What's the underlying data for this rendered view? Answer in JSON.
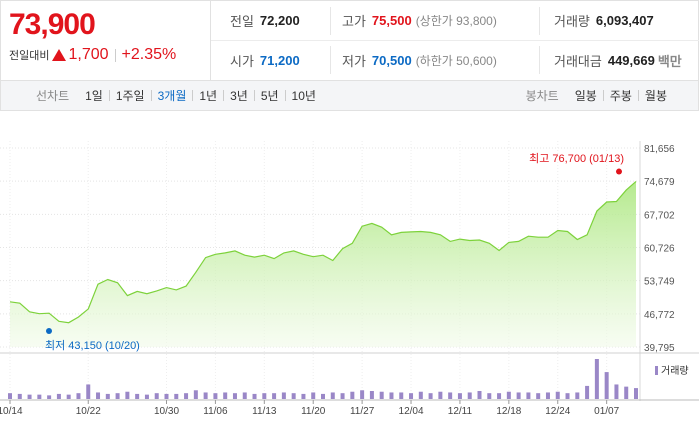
{
  "quote": {
    "price": "73,900",
    "change_label": "전일대비",
    "change_value": "1,700",
    "change_pct": "+2.35%"
  },
  "info": {
    "prev_close_label": "전일",
    "prev_close": "72,200",
    "high_label": "고가",
    "high": "75,500",
    "upper_limit": "(상한가 93,800)",
    "volume_label": "거래량",
    "volume": "6,093,407",
    "open_label": "시가",
    "open": "71,200",
    "low_label": "저가",
    "low": "70,500",
    "lower_limit": "(하한가 50,600)",
    "amount_label": "거래대금",
    "amount": "449,669",
    "amount_unit": "백만"
  },
  "toolbar": {
    "line_chart_label": "선차트",
    "periods": [
      "1일",
      "1주일",
      "3개월",
      "1년",
      "3년",
      "5년",
      "10년"
    ],
    "active_period": "3개월",
    "candle_label": "봉차트",
    "candles": [
      "일봉",
      "주봉",
      "월봉"
    ]
  },
  "colors": {
    "up": "#e1141c",
    "down": "#0c6ac4",
    "line": "#7dd23b",
    "volume": "#9a87c7"
  },
  "chart_data": {
    "type": "area",
    "y_ticks": [
      "81,656",
      "74,679",
      "67,702",
      "60,726",
      "53,749",
      "46,772",
      "39,795"
    ],
    "ylim": [
      39795,
      81656
    ],
    "x_ticks": [
      "10/14",
      "10/22",
      "10/30",
      "11/06",
      "11/13",
      "11/20",
      "11/27",
      "12/04",
      "12/11",
      "12/18",
      "12/24",
      "01/07"
    ],
    "max_annotation": "최고 76,700 (01/13)",
    "min_annotation": "최저 43,150 (10/20)",
    "volume_legend": "거래량",
    "series": [
      {
        "values": [
          49300,
          49000,
          47200,
          46800,
          46900,
          45200,
          44900,
          46100,
          47800,
          53000,
          54000,
          53300,
          50600,
          51500,
          51000,
          51600,
          52300,
          51800,
          52600,
          55500,
          58600,
          59300,
          59600,
          60000,
          59100,
          58700,
          59100,
          58400,
          59600,
          60000,
          59300,
          58800,
          59100,
          58000,
          60500,
          61600,
          65200,
          65800,
          65000,
          63400,
          63900,
          64000,
          64100,
          63900,
          63400,
          62000,
          62500,
          62200,
          62300,
          61600,
          60100,
          61800,
          62000,
          63100,
          62900,
          62900,
          64300,
          64100,
          62400,
          63400,
          68400,
          70300,
          70400,
          72800,
          74600
        ]
      },
      {
        "name": "거래량",
        "values": [
          8,
          7,
          6,
          6,
          5,
          7,
          6,
          8,
          20,
          9,
          7,
          8,
          10,
          7,
          6,
          8,
          7,
          7,
          8,
          12,
          9,
          8,
          9,
          8,
          9,
          7,
          8,
          8,
          9,
          8,
          7,
          9,
          7,
          9,
          8,
          10,
          12,
          11,
          10,
          9,
          9,
          8,
          10,
          8,
          10,
          9,
          8,
          9,
          11,
          8,
          8,
          10,
          9,
          9,
          8,
          9,
          10,
          8,
          9,
          18,
          55,
          37,
          20,
          17,
          15
        ]
      }
    ]
  }
}
